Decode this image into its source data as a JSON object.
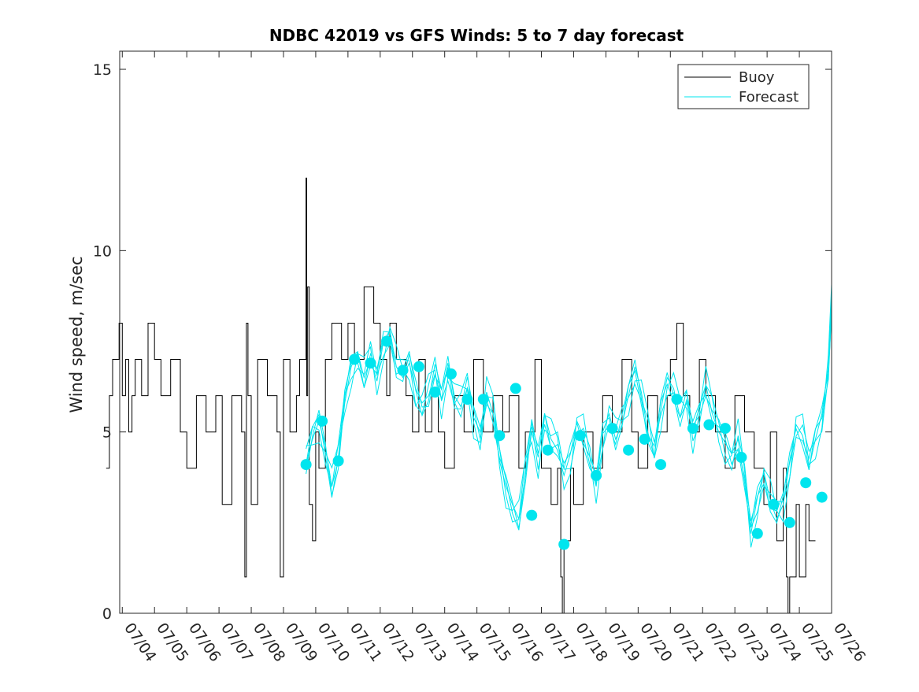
{
  "chart_data": {
    "type": "line",
    "title": "NDBC 42019 vs GFS Winds: 5 to 7 day forecast",
    "xlabel": "",
    "ylabel": "Wind speed, m/sec",
    "xlim": [
      "07/04",
      "07/26"
    ],
    "ylim": [
      0,
      15.5
    ],
    "y_ticks": [
      0,
      5,
      10,
      15
    ],
    "x_ticks": [
      "07/04",
      "07/05",
      "07/06",
      "07/07",
      "07/08",
      "07/09",
      "07/10",
      "07/11",
      "07/12",
      "07/13",
      "07/14",
      "07/15",
      "07/16",
      "07/17",
      "07/18",
      "07/19",
      "07/20",
      "07/21",
      "07/22",
      "07/23",
      "07/24",
      "07/25",
      "07/26"
    ],
    "legend": {
      "position": "top-right",
      "entries": [
        "Buoy",
        "Forecast"
      ]
    },
    "colors": {
      "buoy": "#000000",
      "forecast": "#00e5ee"
    },
    "series": [
      {
        "name": "Buoy",
        "type": "step",
        "x_day": [
          3.5,
          3.6,
          3.7,
          3.9,
          4.0,
          4.1,
          4.2,
          4.3,
          4.4,
          4.6,
          4.8,
          5.0,
          5.2,
          5.5,
          5.8,
          6.0,
          6.3,
          6.6,
          6.9,
          7.1,
          7.4,
          7.7,
          7.8,
          7.85,
          7.9,
          8.0,
          8.2,
          8.5,
          8.8,
          8.9,
          9.0,
          9.2,
          9.4,
          9.5,
          9.7,
          9.72,
          9.75,
          9.8,
          9.9,
          10.0,
          10.1,
          10.3,
          10.5,
          10.8,
          11.0,
          11.2,
          11.5,
          11.8,
          12.0,
          12.2,
          12.3,
          12.5,
          12.8,
          13.0,
          13.2,
          13.4,
          13.6,
          13.8,
          14.0,
          14.3,
          14.6,
          14.9,
          15.2,
          15.5,
          15.8,
          16.0,
          16.3,
          16.5,
          16.8,
          17.0,
          17.3,
          17.5,
          17.6,
          17.65,
          17.7,
          17.9,
          18.0,
          18.3,
          18.6,
          18.9,
          19.2,
          19.5,
          19.8,
          20.0,
          20.3,
          20.6,
          20.9,
          21.0,
          21.2,
          21.4,
          21.6,
          21.9,
          22.1,
          22.4,
          22.7,
          23.0,
          23.3,
          23.6,
          23.9,
          24.1,
          24.3,
          24.5,
          24.6,
          24.65,
          24.7,
          24.9,
          25.0,
          25.2,
          25.3
        ],
        "values": [
          4,
          6,
          7,
          8,
          6,
          7,
          5,
          6,
          7,
          6,
          8,
          7,
          6,
          7,
          5,
          4,
          6,
          5,
          6,
          3,
          6,
          5,
          1,
          8,
          6,
          3,
          7,
          6,
          5,
          1,
          7,
          5,
          6,
          7,
          12,
          6,
          9,
          3,
          2,
          5,
          4,
          7,
          8,
          7,
          8,
          7,
          9,
          8,
          7,
          6,
          8,
          7,
          6,
          5,
          7,
          5,
          6,
          5,
          4,
          6,
          5,
          7,
          5,
          6,
          5,
          6,
          4,
          5,
          7,
          4,
          3,
          4,
          1,
          0,
          2,
          4,
          3,
          5,
          4,
          6,
          5,
          7,
          5,
          4,
          6,
          5,
          6,
          7,
          8,
          6,
          5,
          7,
          6,
          5,
          4,
          6,
          5,
          4,
          3,
          5,
          2,
          4,
          1,
          0,
          1,
          3,
          1,
          3,
          2
        ]
      },
      {
        "name": "Forecast",
        "type": "ensemble-lines",
        "x_day": [
          9.7,
          9.9,
          10.1,
          10.3,
          10.5,
          10.7,
          10.9,
          11.1,
          11.3,
          11.5,
          11.7,
          11.9,
          12.1,
          12.3,
          12.5,
          12.7,
          12.9,
          13.1,
          13.3,
          13.5,
          13.7,
          13.9,
          14.1,
          14.3,
          14.5,
          14.7,
          14.9,
          15.1,
          15.3,
          15.5,
          15.7,
          15.9,
          16.1,
          16.3,
          16.5,
          16.7,
          16.9,
          17.1,
          17.3,
          17.5,
          17.7,
          17.9,
          18.1,
          18.3,
          18.5,
          18.7,
          18.9,
          19.1,
          19.3,
          19.5,
          19.7,
          19.9,
          20.1,
          20.3,
          20.5,
          20.7,
          20.9,
          21.1,
          21.3,
          21.5,
          21.7,
          21.9,
          22.1,
          22.3,
          22.5,
          22.7,
          22.9,
          23.1,
          23.3,
          23.5,
          23.7,
          23.9,
          24.1,
          24.3,
          24.5,
          24.7,
          24.9,
          25.1,
          25.3,
          25.5,
          25.7,
          25.9,
          26.0
        ],
        "values": [
          4.1,
          4.8,
          5.3,
          4.6,
          3.5,
          4.2,
          5.8,
          6.8,
          7.2,
          6.5,
          7.0,
          6.4,
          7.5,
          7.8,
          6.8,
          6.5,
          6.9,
          6.2,
          5.8,
          6.0,
          6.6,
          5.9,
          6.9,
          6.0,
          5.7,
          6.2,
          5.4,
          5.0,
          6.1,
          5.5,
          4.2,
          3.5,
          3.0,
          2.6,
          3.8,
          5.0,
          4.3,
          5.5,
          4.8,
          4.5,
          3.8,
          4.4,
          5.3,
          4.9,
          4.1,
          3.5,
          5.0,
          5.5,
          4.8,
          5.2,
          6.0,
          6.8,
          6.1,
          5.0,
          4.3,
          5.6,
          6.5,
          6.2,
          5.4,
          5.8,
          5.0,
          5.7,
          6.3,
          5.5,
          5.0,
          4.7,
          4.4,
          4.8,
          3.6,
          2.2,
          3.2,
          3.9,
          3.1,
          2.6,
          3.0,
          4.2,
          5.2,
          4.9,
          4.0,
          4.8,
          5.5,
          6.8,
          8.5
        ]
      },
      {
        "name": "Forecast",
        "type": "points",
        "x_day": [
          9.7,
          10.2,
          10.7,
          11.2,
          11.7,
          12.2,
          12.7,
          13.2,
          13.7,
          14.2,
          14.7,
          15.2,
          15.7,
          16.2,
          16.7,
          17.2,
          17.7,
          18.2,
          18.7,
          19.2,
          19.7,
          20.2,
          20.7,
          21.2,
          21.7,
          22.2,
          22.7,
          23.2,
          23.7,
          24.2,
          24.7,
          25.2,
          25.7
        ],
        "values": [
          4.1,
          5.3,
          4.2,
          7.0,
          6.9,
          7.5,
          6.7,
          6.8,
          6.1,
          6.6,
          5.9,
          5.9,
          4.9,
          6.2,
          2.7,
          4.5,
          1.9,
          4.9,
          3.8,
          5.1,
          4.5,
          4.8,
          4.1,
          5.9,
          5.1,
          5.2,
          5.1,
          4.3,
          2.2,
          3.0,
          2.5,
          3.6,
          3.2
        ]
      }
    ]
  }
}
